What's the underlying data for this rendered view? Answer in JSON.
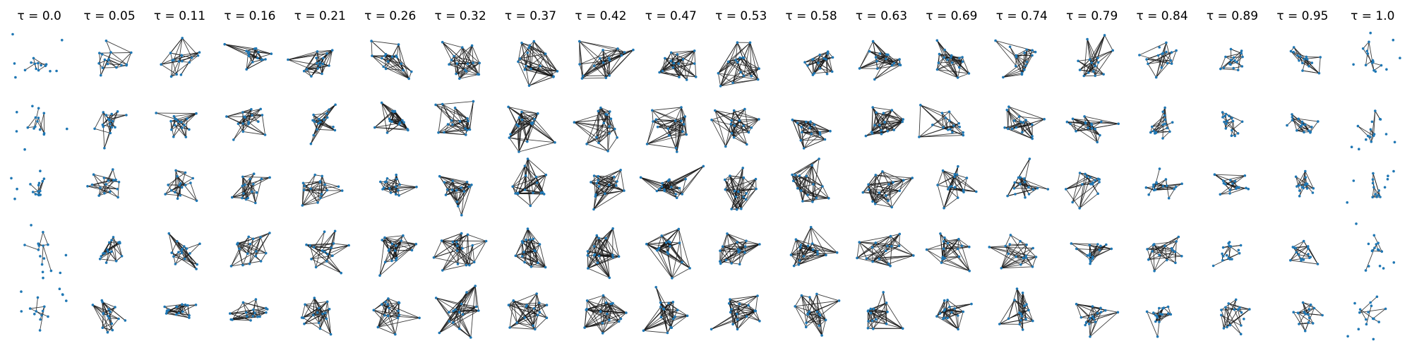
{
  "figure": {
    "columns": [
      "τ = 0.0",
      "τ = 0.05",
      "τ = 0.11",
      "τ = 0.16",
      "τ = 0.21",
      "τ = 0.26",
      "τ = 0.32",
      "τ = 0.37",
      "τ = 0.42",
      "τ = 0.47",
      "τ = 0.53",
      "τ = 0.58",
      "τ = 0.63",
      "τ = 0.69",
      "τ = 0.74",
      "τ = 0.79",
      "τ = 0.84",
      "τ = 0.89",
      "τ = 0.95",
      "τ = 1.0"
    ],
    "row_count": 5,
    "colors": {
      "node": "#1f77b4",
      "edge": "#1a1a1a",
      "background": "#ffffff"
    }
  }
}
